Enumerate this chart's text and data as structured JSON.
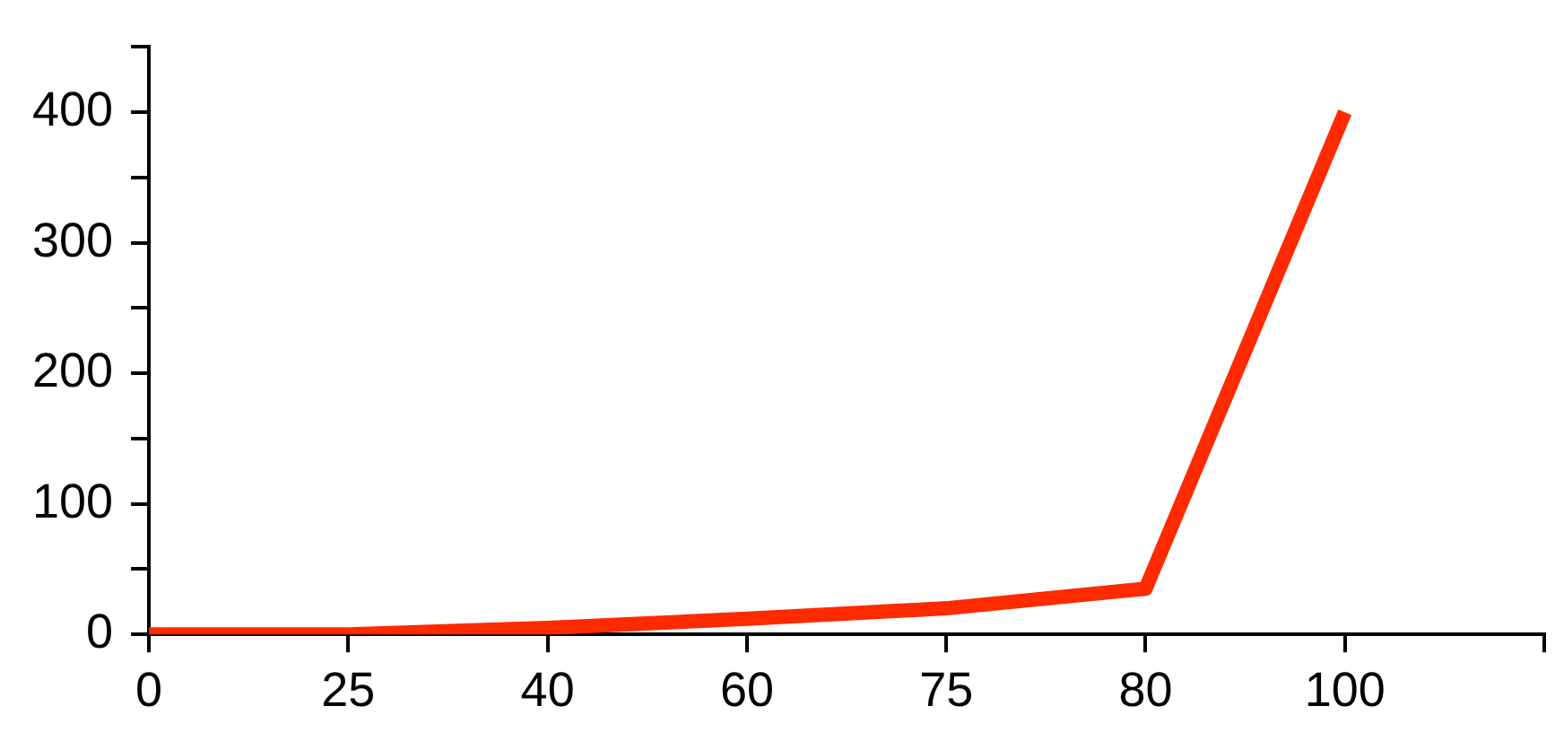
{
  "chart_data": {
    "type": "line",
    "categories": [
      "0",
      "25",
      "40",
      "60",
      "75",
      "80",
      "100",
      null
    ],
    "series": [
      {
        "color": "#ff2a00",
        "values": [
          0,
          0,
          5,
          12,
          20,
          35,
          400,
          null
        ]
      }
    ],
    "ylim": [
      0,
      450
    ],
    "yticks": [
      0,
      {
        "value": 50,
        "label": null
      },
      100,
      {
        "value": 150,
        "label": null
      },
      200,
      {
        "value": 250,
        "label": null
      },
      300,
      {
        "value": 350,
        "label": null
      },
      400,
      {
        "value": 450,
        "label": null
      }
    ],
    "grid": false,
    "legend": false,
    "marker": "none",
    "line_style": "solid"
  }
}
